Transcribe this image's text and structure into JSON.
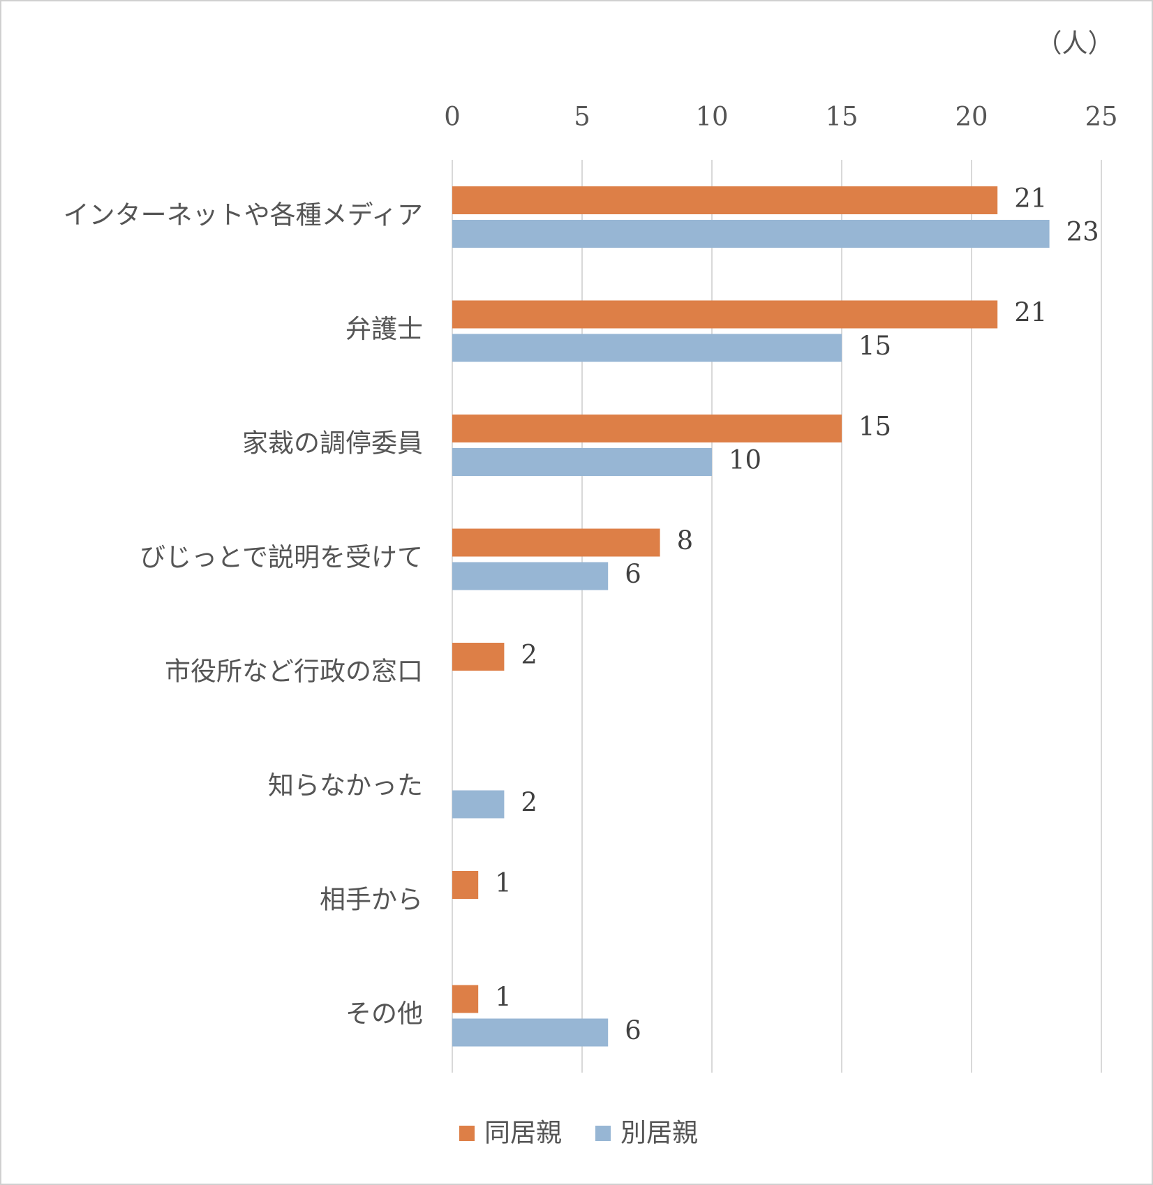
{
  "chart_data": {
    "type": "hbar",
    "unit_label": "（人）",
    "categories": [
      "インターネットや各種メディア",
      "弁護士",
      "家裁の調停委員",
      "びじっとで説明を受けて",
      "市役所など行政の窓口",
      "知らなかった",
      "相手から",
      "その他"
    ],
    "series": [
      {
        "name": "同居親",
        "color": "#dd7f47",
        "values": [
          21,
          21,
          15,
          8,
          2,
          null,
          1,
          1
        ]
      },
      {
        "name": "別居親",
        "color": "#97b6d4",
        "values": [
          23,
          15,
          10,
          6,
          null,
          2,
          null,
          6
        ]
      }
    ],
    "xlim": [
      0,
      25
    ],
    "xticks": [
      0,
      5,
      10,
      15,
      20,
      25
    ],
    "grid": true,
    "legend": "bottom"
  }
}
